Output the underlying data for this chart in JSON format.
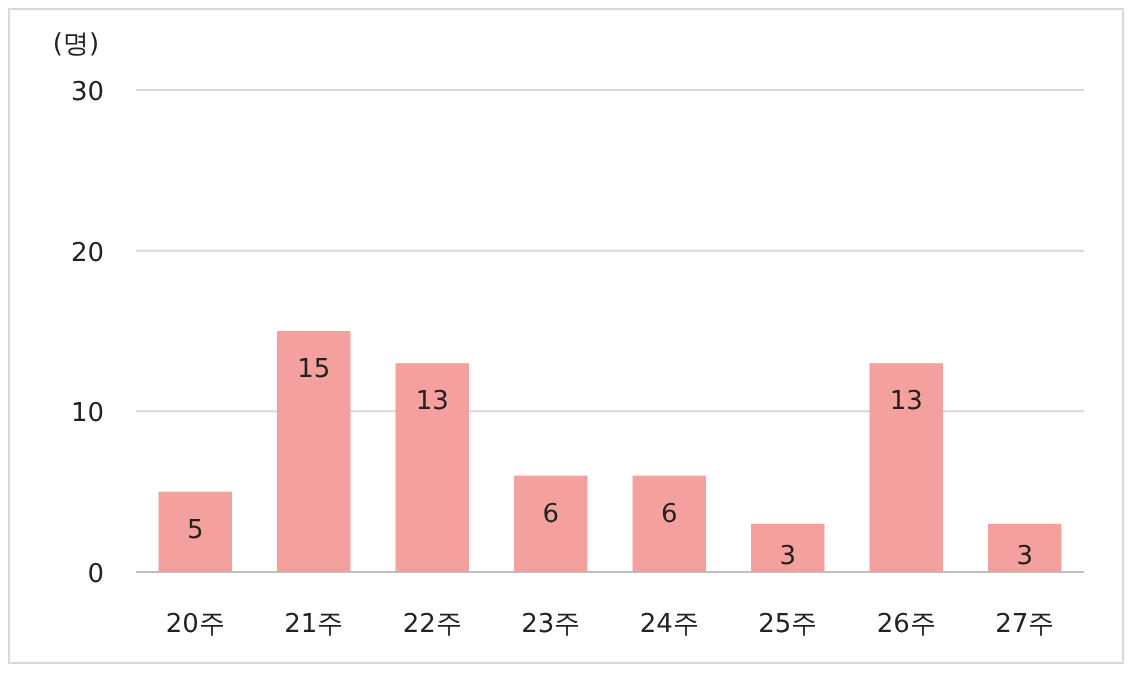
{
  "chart_data": {
    "type": "bar",
    "ylabel": "(명)",
    "categories": [
      "20주",
      "21주",
      "22주",
      "23주",
      "24주",
      "25주",
      "26주",
      "27주"
    ],
    "values": [
      5,
      15,
      13,
      6,
      6,
      3,
      13,
      3
    ],
    "color": "#f4a09f",
    "ylim": [
      0,
      30
    ],
    "yticks": [
      0,
      10,
      20,
      30
    ],
    "grid": "y",
    "data_labels": true
  }
}
